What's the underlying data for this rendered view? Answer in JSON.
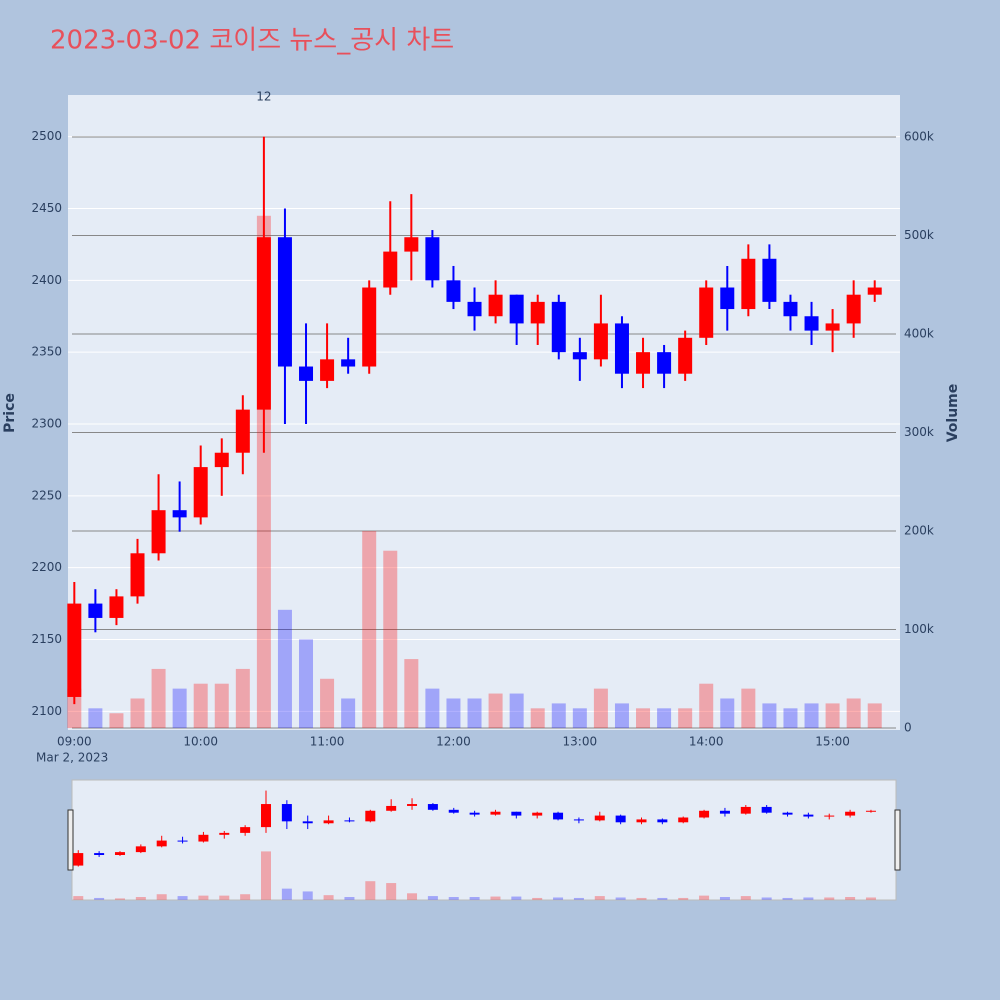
{
  "chart_data": {
    "type": "candlestick",
    "title": "2023-03-02 코이즈 뉴스_공시 차트",
    "x_date_label": "Mar 2, 2023",
    "ylabel": "Price",
    "y2label": "Volume",
    "annotation": "12",
    "x": [
      "09:00",
      "09:10",
      "09:20",
      "09:30",
      "09:40",
      "09:50",
      "10:00",
      "10:10",
      "10:20",
      "10:30",
      "10:40",
      "10:50",
      "11:00",
      "11:10",
      "11:20",
      "11:30",
      "11:40",
      "11:50",
      "12:00",
      "12:10",
      "12:20",
      "12:30",
      "12:40",
      "12:50",
      "13:00",
      "13:10",
      "13:20",
      "13:30",
      "13:40",
      "13:50",
      "14:00",
      "14:10",
      "14:20",
      "14:30",
      "14:40",
      "14:50",
      "15:00",
      "15:10",
      "15:20"
    ],
    "open": [
      2110,
      2175,
      2165,
      2180,
      2210,
      2240,
      2235,
      2270,
      2280,
      2310,
      2430,
      2340,
      2330,
      2345,
      2340,
      2395,
      2420,
      2430,
      2400,
      2385,
      2375,
      2390,
      2370,
      2385,
      2350,
      2345,
      2370,
      2335,
      2350,
      2335,
      2360,
      2395,
      2380,
      2415,
      2385,
      2375,
      2365,
      2370,
      2390
    ],
    "high": [
      2190,
      2185,
      2185,
      2220,
      2265,
      2260,
      2285,
      2290,
      2320,
      2500,
      2450,
      2370,
      2370,
      2360,
      2400,
      2455,
      2460,
      2435,
      2410,
      2395,
      2400,
      2390,
      2390,
      2390,
      2360,
      2390,
      2375,
      2360,
      2355,
      2365,
      2400,
      2410,
      2425,
      2425,
      2390,
      2385,
      2380,
      2400,
      2400
    ],
    "low": [
      2105,
      2155,
      2160,
      2175,
      2205,
      2225,
      2230,
      2250,
      2265,
      2280,
      2300,
      2300,
      2325,
      2335,
      2335,
      2390,
      2400,
      2395,
      2380,
      2365,
      2370,
      2355,
      2355,
      2345,
      2330,
      2340,
      2325,
      2325,
      2325,
      2330,
      2355,
      2365,
      2375,
      2380,
      2365,
      2355,
      2350,
      2360,
      2385
    ],
    "close": [
      2175,
      2165,
      2180,
      2210,
      2240,
      2235,
      2270,
      2280,
      2310,
      2430,
      2340,
      2330,
      2345,
      2340,
      2395,
      2420,
      2430,
      2400,
      2385,
      2375,
      2390,
      2370,
      2385,
      2350,
      2345,
      2370,
      2335,
      2350,
      2335,
      2360,
      2395,
      2380,
      2415,
      2385,
      2375,
      2365,
      2370,
      2390,
      2395
    ],
    "volume": [
      40000,
      20000,
      15000,
      30000,
      60000,
      40000,
      45000,
      45000,
      60000,
      520000,
      120000,
      90000,
      50000,
      30000,
      200000,
      180000,
      70000,
      40000,
      30000,
      30000,
      35000,
      35000,
      20000,
      25000,
      20000,
      40000,
      25000,
      20000,
      20000,
      20000,
      45000,
      30000,
      40000,
      25000,
      20000,
      25000,
      25000,
      30000,
      25000
    ],
    "increasing_color": "#ff0000",
    "decreasing_color": "#0000ff",
    "xlim": [
      "08:57",
      "15:32"
    ],
    "xticks": [
      "09:00",
      "10:00",
      "11:00",
      "12:00",
      "13:00",
      "14:00",
      "15:00"
    ],
    "ylim": [
      2087,
      2529
    ],
    "yticks": [
      2100,
      2150,
      2200,
      2250,
      2300,
      2350,
      2400,
      2450,
      2500
    ],
    "y2lim": [
      -2000,
      642600
    ],
    "y2ticks": [
      0,
      {
        "value": 100000,
        "label": "100k"
      },
      {
        "value": 200000,
        "label": "200k"
      },
      {
        "value": 300000,
        "label": "300k"
      },
      {
        "value": 400000,
        "label": "400k"
      },
      {
        "value": 500000,
        "label": "500k"
      },
      {
        "value": 600000,
        "label": "600k"
      }
    ],
    "grid": true,
    "rangeslider": true
  }
}
